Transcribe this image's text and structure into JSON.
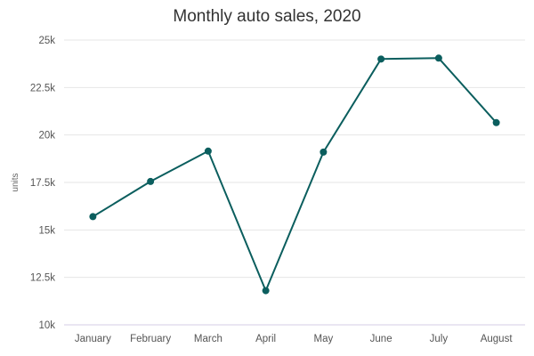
{
  "chart_data": {
    "type": "line",
    "title": "Monthly auto sales, 2020",
    "xlabel": "",
    "ylabel": "units",
    "categories": [
      "January",
      "February",
      "March",
      "April",
      "May",
      "June",
      "July",
      "August"
    ],
    "series": [
      {
        "values": [
          15700,
          17550,
          19150,
          11800,
          19100,
          24000,
          24050,
          20650
        ],
        "color": "#0b5e5e"
      }
    ],
    "ylim": [
      10000,
      25000
    ],
    "yticks": [
      10000,
      12500,
      15000,
      17500,
      20000,
      22500,
      25000
    ],
    "ytick_labels": [
      "10k",
      "12.5k",
      "15k",
      "17.5k",
      "20k",
      "22.5k",
      "25k"
    ],
    "grid": true,
    "legend": "none"
  }
}
